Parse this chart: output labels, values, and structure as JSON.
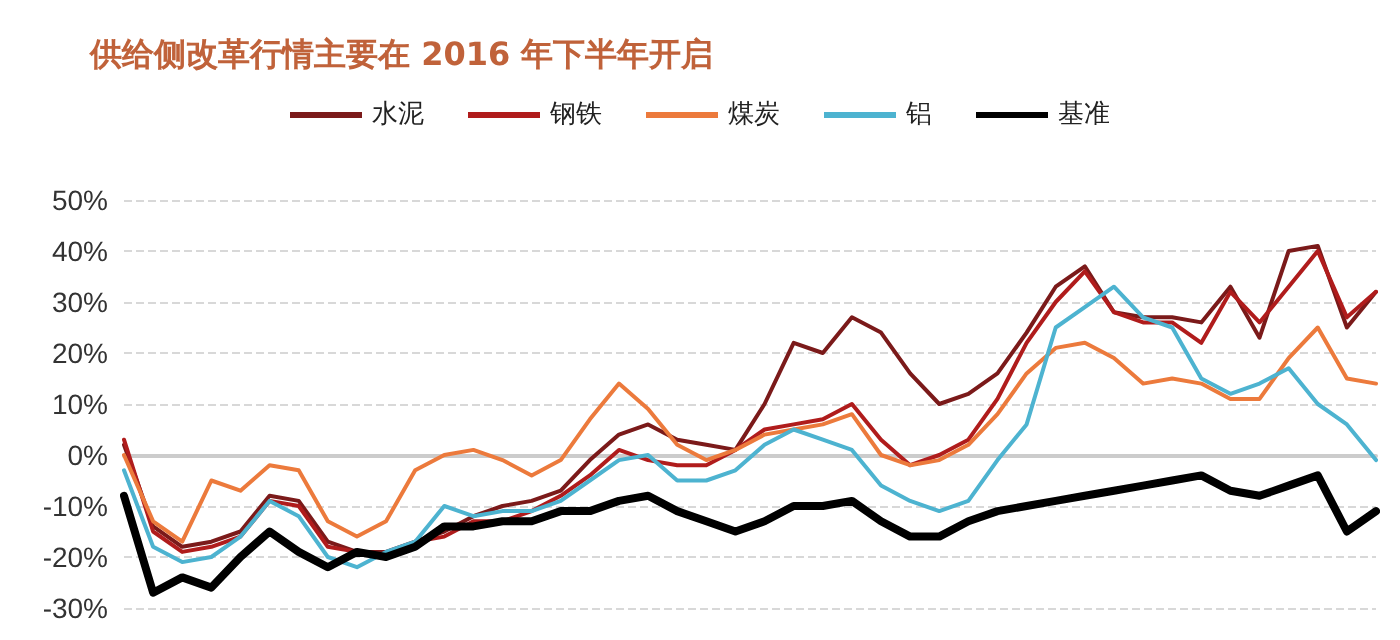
{
  "chart_data": {
    "type": "line",
    "title": "供给侧改革行情主要在 2016 年下半年开启",
    "categories": [
      null,
      null,
      null,
      null,
      null,
      null,
      null,
      null,
      null,
      null,
      null,
      null,
      null,
      null,
      null,
      null,
      null,
      null,
      null,
      null,
      null,
      null,
      null,
      null,
      null,
      null,
      null,
      null,
      null,
      null,
      null,
      null,
      null,
      null,
      null,
      null,
      null,
      null,
      null,
      null,
      null,
      null,
      null,
      null
    ],
    "series": [
      {
        "name": "水泥",
        "color": "#7b1a1a",
        "values": [
          2,
          -14,
          -18,
          -17,
          -15,
          -8,
          -9,
          -17,
          -19,
          -19,
          -17,
          -15,
          -12,
          -10,
          -9,
          -7,
          -1,
          4,
          6,
          3,
          2,
          1,
          10,
          22,
          20,
          27,
          24,
          16,
          10,
          12,
          16,
          24,
          33,
          37,
          28,
          27,
          27,
          26,
          33,
          23,
          40,
          41,
          25,
          32
        ]
      },
      {
        "name": "钢铁",
        "color": "#b01c1c",
        "values": [
          3,
          -15,
          -19,
          -18,
          -16,
          -9,
          -10,
          -18,
          -19,
          -20,
          -17,
          -16,
          -13,
          -13,
          -11,
          -8,
          -4,
          1,
          -1,
          -2,
          -2,
          1,
          5,
          6,
          7,
          10,
          3,
          -2,
          0,
          3,
          11,
          22,
          30,
          36,
          28,
          26,
          26,
          22,
          32,
          26,
          33,
          40,
          27,
          32
        ]
      },
      {
        "name": "煤炭",
        "color": "#ec7a3c",
        "values": [
          0,
          -13,
          -17,
          -5,
          -7,
          -2,
          -3,
          -13,
          -16,
          -13,
          -3,
          0,
          1,
          -1,
          -4,
          -1,
          7,
          14,
          9,
          2,
          -1,
          1,
          4,
          5,
          6,
          8,
          0,
          -2,
          -1,
          2,
          8,
          16,
          21,
          22,
          19,
          14,
          15,
          14,
          11,
          11,
          19,
          25,
          15,
          14
        ]
      },
      {
        "name": "铝",
        "color": "#4db3d0",
        "values": [
          -3,
          -18,
          -21,
          -20,
          -16,
          -9,
          -12,
          -20,
          -22,
          -19,
          -17,
          -10,
          -12,
          -11,
          -11,
          -9,
          -5,
          -1,
          0,
          -5,
          -5,
          -3,
          2,
          5,
          3,
          1,
          -6,
          -9,
          -11,
          -9,
          -1,
          6,
          25,
          29,
          33,
          27,
          25,
          15,
          12,
          14,
          17,
          10,
          6,
          -1
        ]
      },
      {
        "name": "基准",
        "color": "#000000",
        "values": [
          -8,
          -27,
          -24,
          -26,
          -20,
          -15,
          -19,
          -22,
          -19,
          -20,
          -18,
          -14,
          -14,
          -13,
          -13,
          -11,
          -11,
          -9,
          -8,
          -11,
          -13,
          -15,
          -13,
          -10,
          -10,
          -9,
          -13,
          -16,
          -16,
          -13,
          -11,
          -10,
          -9,
          -8,
          -7,
          -6,
          -5,
          -4,
          -7,
          -8,
          -6,
          -4,
          -15,
          -11
        ]
      }
    ],
    "ylim": [
      -30,
      50
    ],
    "yticks": [
      {
        "value": -30,
        "label": "-30%"
      },
      {
        "value": -20,
        "label": "-20%"
      },
      {
        "value": -10,
        "label": "-10%"
      },
      {
        "value": 0,
        "label": "0%"
      },
      {
        "value": 10,
        "label": "10%"
      },
      {
        "value": 20,
        "label": "20%"
      },
      {
        "value": 30,
        "label": "30%"
      },
      {
        "value": 40,
        "label": "40%"
      },
      {
        "value": 50,
        "label": "50%"
      }
    ],
    "grid": "y",
    "legend": "top",
    "tick_labels": "y",
    "marker": "none",
    "line_style": "solid"
  }
}
